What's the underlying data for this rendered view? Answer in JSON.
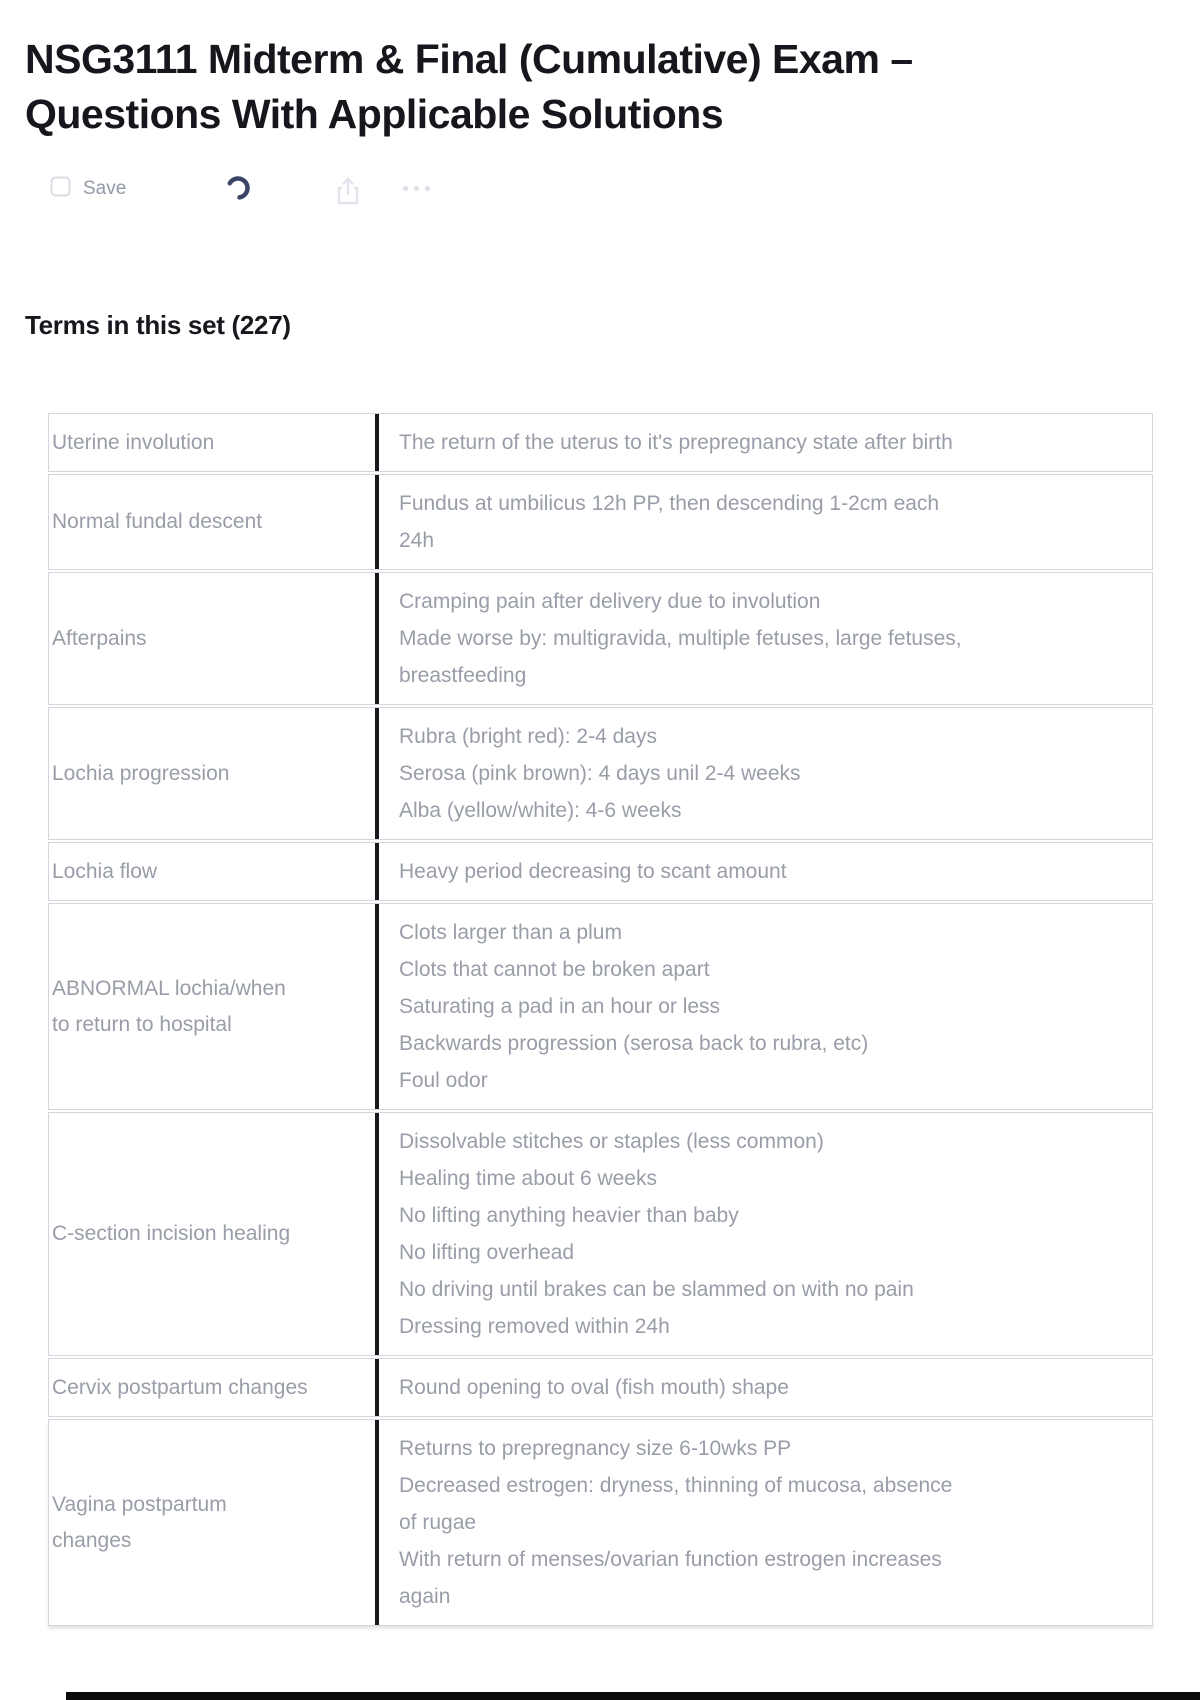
{
  "page": {
    "title": "NSG3111 Midterm & Final (Cumulative) Exam – Questions With Applicable Solutions",
    "terms_heading": "Terms in this set (227)"
  },
  "toolbar": {
    "save_label": "Save",
    "icons": [
      "save-bookmark-icon",
      "loading-spinner",
      "share-icon",
      "more-options-icon"
    ]
  },
  "colors": {
    "title_text": "#15171c",
    "body_text": "#989da8",
    "row_border": "#d3d6dc",
    "column_divider": "#17181b",
    "spinner": "#3d4566",
    "faint_icon": "#dfe2e9",
    "save_text": "#9299a6",
    "bottom_bar": "#0b0b0d"
  },
  "terms": [
    {
      "term": "Uterine involution",
      "definition_lines": [
        "The return of the uterus to it's prepregnancy state after birth"
      ]
    },
    {
      "term": "Normal fundal descent",
      "definition_lines": [
        "Fundus at umbilicus 12h PP, then descending 1-2cm each 24h"
      ]
    },
    {
      "term": "Afterpains",
      "definition_lines": [
        "Cramping pain after delivery due to involution",
        "Made worse by: multigravida, multiple fetuses, large fetuses, breastfeeding"
      ]
    },
    {
      "term": "Lochia progression",
      "definition_lines": [
        "Rubra (bright red): 2-4 days",
        "Serosa (pink brown): 4 days unil 2-4 weeks",
        "Alba (yellow/white): 4-6 weeks"
      ]
    },
    {
      "term": "Lochia flow",
      "definition_lines": [
        "Heavy period decreasing to scant amount"
      ]
    },
    {
      "term": "ABNORMAL lochia/when\nto return to hospital",
      "definition_lines": [
        "Clots larger than a plum",
        "Clots that cannot be broken apart",
        "Saturating a pad in an hour or less",
        "Backwards progression (serosa back to rubra, etc)",
        "Foul odor"
      ]
    },
    {
      "term": "C-section incision healing",
      "definition_lines": [
        "Dissolvable stitches or staples (less common)",
        "Healing time about 6 weeks",
        "No lifting anything heavier than baby",
        "No lifting overhead",
        "No driving until brakes can be slammed on with no pain",
        "Dressing removed within 24h"
      ]
    },
    {
      "term": "Cervix postpartum changes",
      "definition_lines": [
        "Round opening to oval (fish mouth) shape"
      ]
    },
    {
      "term": "Vagina postpartum\nchanges",
      "definition_lines": [
        "Returns to prepregnancy size 6-10wks PP",
        "Decreased estrogen: dryness, thinning of mucosa, absence of rugae",
        "With return of menses/ovarian function estrogen increases again"
      ]
    }
  ]
}
